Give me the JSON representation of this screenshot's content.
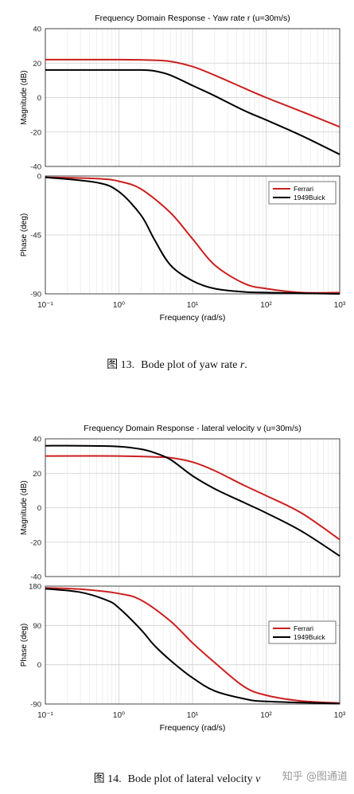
{
  "colors": {
    "ferrari": "#cc1f1f",
    "buick": "#000000",
    "axis": "#333333"
  },
  "chart_data": [
    {
      "type": "line",
      "title": "Frequency Domain Response - Yaw rate r (u=30m/s)",
      "x_scale": "log",
      "xlim": [
        0.1,
        1000
      ],
      "x_ticks": [
        "10⁻¹",
        "10⁰",
        "10¹",
        "10²",
        "10³"
      ],
      "xlabel": "Frequency  (rad/s)",
      "legend_placement": "top-right of phase plot",
      "grid": true,
      "panels": [
        {
          "ylabel": "Magnitude (dB)",
          "ylim": [
            -40,
            40
          ],
          "y_ticks": [
            40,
            20,
            0,
            -20,
            -40
          ],
          "series": [
            {
              "name": "Ferrari",
              "x": [
                0.1,
                1,
                3,
                5,
                10,
                20,
                50,
                100,
                300,
                1000
              ],
              "values": [
                22,
                22,
                21.7,
                21,
                18,
                13,
                5.5,
                0,
                -8,
                -17
              ]
            },
            {
              "name": "1949Buick",
              "x": [
                0.1,
                1,
                2,
                3,
                5,
                10,
                20,
                50,
                100,
                300,
                1000
              ],
              "values": [
                16,
                16,
                16,
                15.5,
                13,
                7,
                1,
                -7.5,
                -13,
                -22,
                -33
              ]
            }
          ]
        },
        {
          "ylabel": "Phase (deg)",
          "ylim": [
            -90,
            0
          ],
          "y_ticks": [
            0,
            -45,
            -90
          ],
          "series": [
            {
              "name": "Ferrari",
              "x": [
                0.1,
                0.5,
                1,
                2,
                5,
                10,
                20,
                50,
                100,
                300,
                1000
              ],
              "values": [
                -1,
                -2,
                -4,
                -10,
                -28,
                -48,
                -68,
                -82,
                -86,
                -89,
                -89
              ]
            },
            {
              "name": "1949Buick",
              "x": [
                0.1,
                0.5,
                1,
                2,
                3,
                5,
                10,
                20,
                50,
                100,
                1000
              ],
              "values": [
                -1,
                -5,
                -12,
                -30,
                -48,
                -68,
                -80,
                -86,
                -88.5,
                -89,
                -90
              ]
            }
          ]
        }
      ]
    },
    {
      "type": "line",
      "title": "Frequency Domain Response - lateral velocity v (u=30m/s)",
      "x_scale": "log",
      "xlim": [
        0.1,
        1000
      ],
      "x_ticks": [
        "10⁻¹",
        "10⁰",
        "10¹",
        "10²",
        "10³"
      ],
      "xlabel": "Frequency  (rad/s)",
      "legend_placement": "middle-right of phase plot",
      "grid": true,
      "panels": [
        {
          "ylabel": "Magnitude (dB)",
          "ylim": [
            -40,
            40
          ],
          "y_ticks": [
            40,
            20,
            0,
            -20,
            -40
          ],
          "series": [
            {
              "name": "Ferrari",
              "x": [
                0.1,
                1,
                3,
                5,
                10,
                20,
                50,
                100,
                300,
                1000
              ],
              "values": [
                30,
                30,
                29.5,
                29,
                26.5,
                21.5,
                13,
                7,
                -3,
                -18.5
              ]
            },
            {
              "name": "1949Buick",
              "x": [
                0.1,
                0.3,
                1,
                2,
                3,
                5,
                10,
                20,
                50,
                100,
                300,
                1000
              ],
              "values": [
                36,
                36,
                35.5,
                34,
                32,
                28,
                18.5,
                11,
                3,
                -3,
                -13.5,
                -28
              ]
            }
          ]
        },
        {
          "ylabel": "Phase (deg)",
          "ylim": [
            -90,
            180
          ],
          "y_ticks": [
            180,
            90,
            0,
            -90
          ],
          "series": [
            {
              "name": "Ferrari",
              "x": [
                0.1,
                0.3,
                1,
                2,
                5,
                10,
                20,
                50,
                100,
                300,
                1000
              ],
              "values": [
                176,
                173,
                163,
                148,
                100,
                50,
                5,
                -50,
                -70,
                -83,
                -88
              ]
            },
            {
              "name": "1949Buick",
              "x": [
                0.1,
                0.3,
                0.7,
                1,
                2,
                3,
                5,
                10,
                20,
                50,
                100,
                1000
              ],
              "values": [
                174,
                166,
                147,
                130,
                80,
                45,
                10,
                -30,
                -60,
                -78,
                -84,
                -89
              ]
            }
          ]
        }
      ]
    }
  ],
  "captions": [
    {
      "tag": "图 13.",
      "text": "Bode plot of yaw rate ",
      "var": "r",
      "end": "."
    },
    {
      "tag": "图 14.",
      "text": "Bode plot of lateral velocity ",
      "var": "v",
      "end": ""
    }
  ],
  "watermark": "知乎 @图通道"
}
